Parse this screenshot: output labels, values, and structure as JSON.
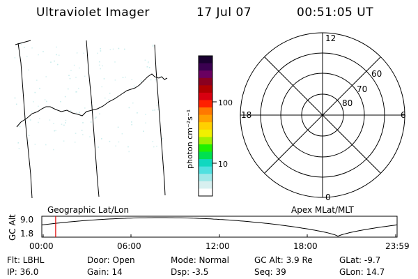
{
  "header": {
    "instrument": "Ultraviolet Imager",
    "date": "17 Jul 07",
    "time": "00:51:05 UT"
  },
  "colorbar": {
    "unit_label": "photon cm⁻²s⁻¹",
    "tick_labels": [
      "100",
      "10"
    ],
    "colors": [
      "#1a0030",
      "#3a0050",
      "#6a0060",
      "#8a0020",
      "#b00000",
      "#d80010",
      "#ff2000",
      "#ff7800",
      "#ffa000",
      "#ffd000",
      "#f0f000",
      "#a0f000",
      "#20f000",
      "#00e050",
      "#10d8c0",
      "#50e0e0",
      "#a0e8e8",
      "#d8f0f0",
      "#ffffff"
    ]
  },
  "polar": {
    "mlt_labels": {
      "top": "12",
      "right": "6",
      "bottom": "0",
      "left": "18"
    },
    "lat_labels": [
      "60",
      "70",
      "80"
    ]
  },
  "orbit": {
    "y_axis_title": "GC Alt",
    "y_ticks": [
      "9.0",
      "1.8"
    ],
    "left_label": "Geographic Lat/Lon",
    "right_label": "Apex MLat/MLT",
    "x_ticks": [
      "00:00",
      "06:00",
      "12:00",
      "18:00",
      "23:59"
    ],
    "current_marker_hours": 0.85
  },
  "status": {
    "filter": "Flt: LBHL",
    "door": "Door: Open",
    "mode": "Mode: Normal",
    "gc_alt": "GC Alt: 3.9 Re",
    "glat": "GLat:  -9.7",
    "ip": "IP: 36.0",
    "gain": "Gain: 14",
    "dsp": "Dsp:   -3.5",
    "seq": "Seq: 39",
    "glon": "GLon:  14.7"
  }
}
